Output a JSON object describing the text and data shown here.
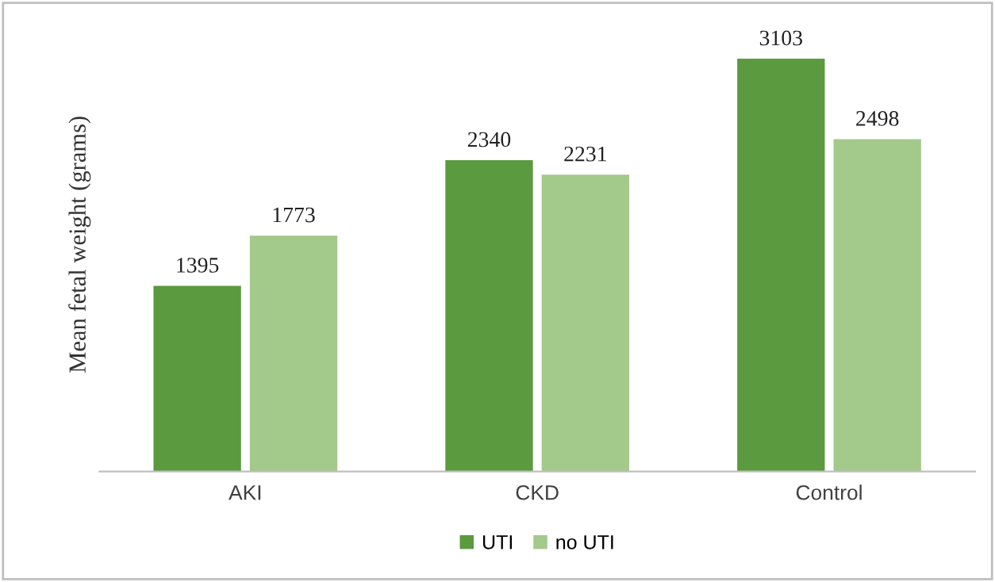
{
  "chart_data": {
    "type": "bar",
    "ylabel": "Mean fetal weight (grams)",
    "categories": [
      "AKI",
      "CKD",
      "Control"
    ],
    "series": [
      {
        "name": "UTI",
        "color": "#5b9a3f",
        "values": [
          1395,
          2340,
          3103
        ]
      },
      {
        "name": "no UTI",
        "color": "#a3c98b",
        "values": [
          1773,
          2231,
          2498
        ]
      }
    ],
    "data_labels": true,
    "legend": "bottom",
    "grid": false
  }
}
